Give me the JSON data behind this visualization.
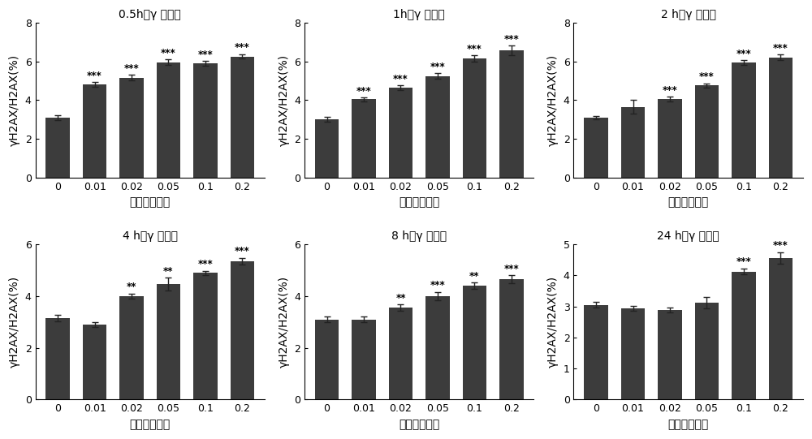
{
  "panels": [
    {
      "title": "0.5h（γ 射线）",
      "xlabels": [
        "0",
        "0.01",
        "0.02",
        "0.05",
        "0.1",
        "0.2"
      ],
      "values": [
        3.1,
        4.8,
        5.15,
        5.95,
        5.9,
        6.25
      ],
      "errors": [
        0.12,
        0.12,
        0.15,
        0.15,
        0.12,
        0.12
      ],
      "sig": [
        "",
        "***",
        "***",
        "***",
        "***",
        "***"
      ],
      "ylim": [
        0,
        8
      ],
      "yticks": [
        0,
        2,
        4,
        6,
        8
      ]
    },
    {
      "title": "1h（γ 射线）",
      "xlabels": [
        "0",
        "0.01",
        "0.02",
        "0.05",
        "0.1",
        "0.2"
      ],
      "values": [
        3.0,
        4.05,
        4.65,
        5.25,
        6.15,
        6.55
      ],
      "errors": [
        0.12,
        0.1,
        0.12,
        0.15,
        0.15,
        0.25
      ],
      "sig": [
        "",
        "***",
        "***",
        "***",
        "***",
        "***"
      ],
      "ylim": [
        0,
        8
      ],
      "yticks": [
        0,
        2,
        4,
        6,
        8
      ]
    },
    {
      "title": "2 h（γ 射线）",
      "xlabels": [
        "0",
        "0.01",
        "0.02",
        "0.05",
        "0.1",
        "0.2"
      ],
      "values": [
        3.1,
        3.65,
        4.05,
        4.75,
        5.95,
        6.2
      ],
      "errors": [
        0.1,
        0.35,
        0.12,
        0.12,
        0.12,
        0.15
      ],
      "sig": [
        "",
        "",
        "***",
        "***",
        "***",
        "***"
      ],
      "ylim": [
        0,
        8
      ],
      "yticks": [
        0,
        2,
        4,
        6,
        8
      ]
    },
    {
      "title": "4 h（γ 射线）",
      "xlabels": [
        "0",
        "0.01",
        "0.02",
        "0.05",
        "0.1",
        "0.2"
      ],
      "values": [
        3.15,
        2.9,
        4.0,
        4.45,
        4.9,
        5.35
      ],
      "errors": [
        0.12,
        0.1,
        0.1,
        0.25,
        0.08,
        0.12
      ],
      "sig": [
        "",
        "",
        "**",
        "**",
        "***",
        "***"
      ],
      "ylim": [
        0,
        6
      ],
      "yticks": [
        0,
        2,
        4,
        6
      ]
    },
    {
      "title": "8 h（γ 射线）",
      "xlabels": [
        "0",
        "0.01",
        "0.02",
        "0.05",
        "0.1",
        "0.2"
      ],
      "values": [
        3.1,
        3.1,
        3.55,
        4.0,
        4.4,
        4.65
      ],
      "errors": [
        0.12,
        0.1,
        0.12,
        0.15,
        0.12,
        0.15
      ],
      "sig": [
        "",
        "",
        "**",
        "***",
        "**",
        "***"
      ],
      "ylim": [
        0,
        6
      ],
      "yticks": [
        0,
        2,
        4,
        6
      ]
    },
    {
      "title": "24 h（γ 射线）",
      "xlabels": [
        "0",
        "0.01",
        "0.02",
        "0.05",
        "0.1",
        "0.2"
      ],
      "values": [
        3.05,
        2.93,
        2.88,
        3.12,
        4.12,
        4.55
      ],
      "errors": [
        0.1,
        0.08,
        0.07,
        0.18,
        0.1,
        0.18
      ],
      "sig": [
        "",
        "",
        "",
        "",
        "***",
        "***"
      ],
      "ylim": [
        0,
        5
      ],
      "yticks": [
        0,
        1,
        2,
        3,
        4,
        5
      ]
    }
  ],
  "bar_color": "#3c3c3c",
  "error_color": "#222222",
  "xlabel": "剂量（戜瑞）",
  "ylabel": "γH2AX/H2AX(%)",
  "sig_fontsize": 8.5,
  "title_fontsize": 11,
  "label_fontsize": 10,
  "tick_fontsize": 9,
  "background_color": "white"
}
